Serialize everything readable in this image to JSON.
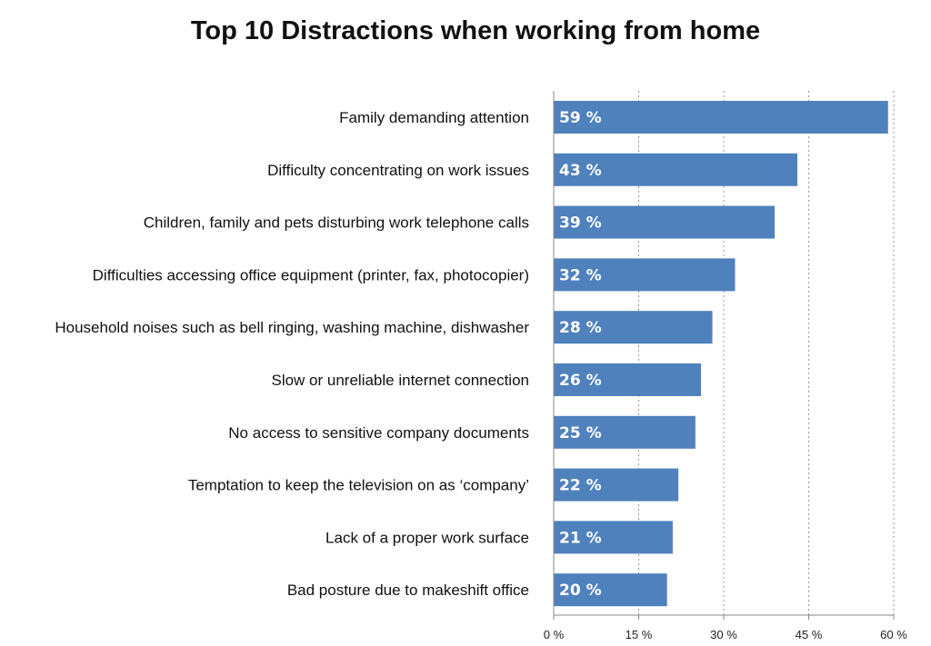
{
  "chart_data": {
    "type": "bar",
    "orientation": "horizontal",
    "title": "Top 10 Distractions when working from home",
    "categories": [
      "Family demanding attention",
      "Difficulty concentrating on work issues",
      "Children, family and pets disturbing work telephone calls",
      "Difficulties accessing office equipment (printer, fax, photocopier)",
      "Household noises such as bell ringing, washing machine, dishwasher",
      "Slow or unreliable internet connection",
      "No access to sensitive company documents",
      "Temptation to keep the television on as ‘company’",
      "Lack of a proper work surface",
      "Bad posture due to makeshift office"
    ],
    "values": [
      59,
      43,
      39,
      32,
      28,
      26,
      25,
      22,
      21,
      20
    ],
    "value_labels": [
      "59 %",
      "43 %",
      "39 %",
      "32 %",
      "28 %",
      "26 %",
      "25 %",
      "22 %",
      "21 %",
      "20 %"
    ],
    "xlim": [
      0,
      60
    ],
    "x_ticks": [
      0,
      15,
      30,
      45,
      60
    ],
    "x_tick_labels": [
      "0 %",
      "15 %",
      "30 %",
      "45 %",
      "60 %"
    ],
    "grid": "vertical-dotted",
    "bar_color": "#4f81bd"
  }
}
